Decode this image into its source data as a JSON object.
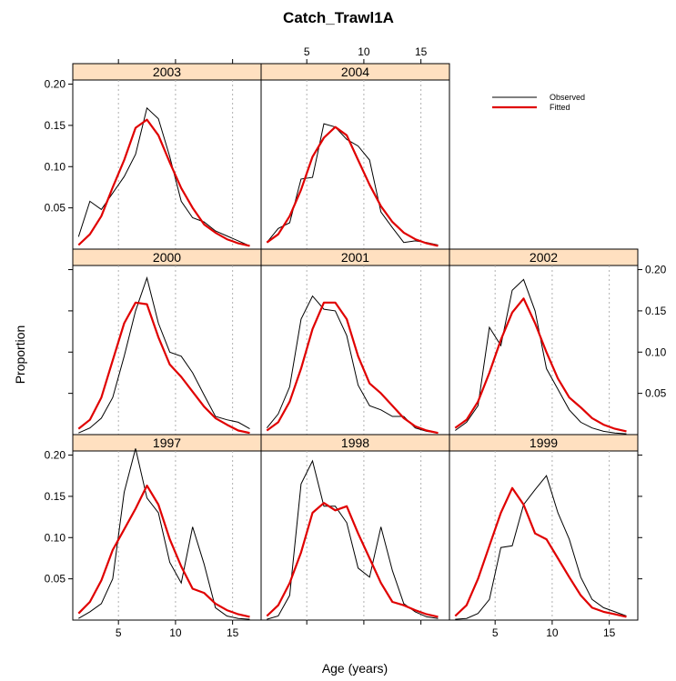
{
  "chart_data": {
    "type": "line",
    "title": "Catch_Trawl1A",
    "xlabel": "Age (years)",
    "ylabel": "Proportion",
    "xlim": [
      1,
      17.5
    ],
    "ylim": [
      0,
      0.205
    ],
    "x_ticks": [
      5,
      10,
      15
    ],
    "x_tick_labels": [
      "5",
      "10",
      "15"
    ],
    "y_ticks": [
      0.05,
      0.1,
      0.15,
      0.2
    ],
    "y_tick_labels": [
      "0.05",
      "0.10",
      "0.15",
      "0.20"
    ],
    "grid": "vertical dotted at x ticks",
    "legend": {
      "placement": "top-right",
      "entries": [
        {
          "label": "Observed",
          "color": "#000000"
        },
        {
          "label": "Fitted",
          "color": "#e00000"
        }
      ]
    },
    "colors": {
      "observed": "#000000",
      "fitted": "#e00000",
      "strip": "#ffe0c0"
    },
    "x": [
      1.5,
      2.5,
      3.5,
      4.5,
      5.5,
      6.5,
      7.5,
      8.5,
      9.5,
      10.5,
      11.5,
      12.5,
      13.5,
      14.5,
      15.5,
      16.5
    ],
    "panels": [
      {
        "label": "2003",
        "row": 0,
        "col": 0,
        "observed": [
          0.015,
          0.058,
          0.048,
          0.068,
          0.088,
          0.115,
          0.171,
          0.158,
          0.112,
          0.058,
          0.038,
          0.033,
          0.022,
          0.016,
          0.01,
          0.004
        ],
        "fitted": [
          0.005,
          0.018,
          0.04,
          0.075,
          0.108,
          0.147,
          0.157,
          0.138,
          0.105,
          0.074,
          0.05,
          0.03,
          0.02,
          0.012,
          0.007,
          0.004
        ]
      },
      {
        "label": "2004",
        "row": 0,
        "col": 1,
        "observed": [
          0.008,
          0.025,
          0.032,
          0.085,
          0.087,
          0.152,
          0.148,
          0.133,
          0.125,
          0.108,
          0.045,
          0.026,
          0.008,
          0.01,
          0.008,
          0.005
        ],
        "fitted": [
          0.008,
          0.018,
          0.04,
          0.072,
          0.112,
          0.135,
          0.148,
          0.138,
          0.108,
          0.078,
          0.052,
          0.033,
          0.02,
          0.012,
          0.007,
          0.004
        ]
      },
      {
        "label": "2000",
        "row": 1,
        "col": 0,
        "observed": [
          0.002,
          0.008,
          0.02,
          0.045,
          0.095,
          0.15,
          0.19,
          0.135,
          0.1,
          0.095,
          0.075,
          0.048,
          0.022,
          0.018,
          0.015,
          0.007
        ],
        "fitted": [
          0.007,
          0.018,
          0.045,
          0.09,
          0.135,
          0.16,
          0.158,
          0.118,
          0.085,
          0.07,
          0.052,
          0.034,
          0.02,
          0.012,
          0.005,
          0.002
        ]
      },
      {
        "label": "2001",
        "row": 1,
        "col": 1,
        "observed": [
          0.008,
          0.025,
          0.058,
          0.14,
          0.168,
          0.152,
          0.15,
          0.12,
          0.06,
          0.035,
          0.03,
          0.022,
          0.022,
          0.008,
          0.004,
          0.002
        ],
        "fitted": [
          0.005,
          0.015,
          0.04,
          0.08,
          0.128,
          0.16,
          0.16,
          0.14,
          0.095,
          0.062,
          0.05,
          0.035,
          0.02,
          0.01,
          0.005,
          0.002
        ]
      },
      {
        "label": "2002",
        "row": 1,
        "col": 2,
        "observed": [
          0.005,
          0.015,
          0.035,
          0.13,
          0.108,
          0.175,
          0.188,
          0.15,
          0.08,
          0.055,
          0.03,
          0.015,
          0.008,
          0.004,
          0.002,
          0.001
        ],
        "fitted": [
          0.008,
          0.018,
          0.04,
          0.075,
          0.115,
          0.148,
          0.165,
          0.135,
          0.1,
          0.068,
          0.045,
          0.033,
          0.02,
          0.012,
          0.007,
          0.004
        ]
      },
      {
        "label": "1997",
        "row": 2,
        "col": 0,
        "observed": [
          0.002,
          0.01,
          0.02,
          0.05,
          0.155,
          0.208,
          0.148,
          0.13,
          0.07,
          0.045,
          0.113,
          0.068,
          0.015,
          0.005,
          0.002,
          0.001
        ],
        "fitted": [
          0.008,
          0.022,
          0.048,
          0.085,
          0.11,
          0.135,
          0.163,
          0.14,
          0.098,
          0.065,
          0.038,
          0.033,
          0.02,
          0.012,
          0.007,
          0.004
        ]
      },
      {
        "label": "1998",
        "row": 2,
        "col": 1,
        "observed": [
          0.001,
          0.005,
          0.03,
          0.165,
          0.193,
          0.138,
          0.138,
          0.118,
          0.063,
          0.052,
          0.113,
          0.06,
          0.02,
          0.01,
          0.004,
          0.002
        ],
        "fitted": [
          0.005,
          0.018,
          0.045,
          0.082,
          0.13,
          0.142,
          0.133,
          0.138,
          0.105,
          0.075,
          0.045,
          0.022,
          0.018,
          0.012,
          0.007,
          0.004
        ]
      },
      {
        "label": "1999",
        "row": 2,
        "col": 2,
        "observed": [
          0.001,
          0.002,
          0.008,
          0.025,
          0.088,
          0.09,
          0.14,
          0.158,
          0.175,
          0.13,
          0.098,
          0.052,
          0.025,
          0.015,
          0.01,
          0.005
        ],
        "fitted": [
          0.005,
          0.018,
          0.05,
          0.09,
          0.13,
          0.16,
          0.14,
          0.105,
          0.098,
          0.075,
          0.052,
          0.03,
          0.015,
          0.01,
          0.007,
          0.004
        ]
      }
    ]
  }
}
